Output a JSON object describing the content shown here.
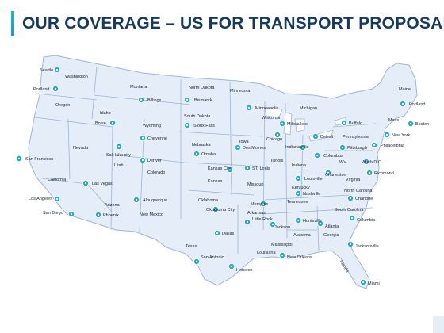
{
  "title": "OUR COVERAGE – US FOR TRANSPORT PROPOSAL",
  "colors": {
    "title": "#17395f",
    "land": "#e4edf8",
    "border": "#9fb6d4",
    "marker": "#1fa9c4",
    "label": "#1c2433"
  },
  "marker_icon": "location-pin-icon",
  "states": [
    "Washington",
    "Oregon",
    "Montana",
    "Idaho",
    "North Dakota",
    "Minnesota",
    "South Dakota",
    "Wyoming",
    "Nevada",
    "Utah",
    "California",
    "Colorado",
    "Nebraska",
    "Iowa",
    "Wisconsin",
    "Michigan",
    "Illinois",
    "Indiana",
    "Kansas",
    "Missouri",
    "Kentucky",
    "Arizona",
    "New Mexico",
    "Oklahoma",
    "Arkansas",
    "Tennessee",
    "Texas",
    "Louisiana",
    "Mississippi",
    "Alabama",
    "Georgia",
    "Florida",
    "Virginia",
    "WV",
    "North Carolina",
    "South Carolina",
    "Pennsylvania",
    "Maine",
    "Mass"
  ],
  "cities": [
    "Seattle",
    "Portland",
    "Billings",
    "Bismarck",
    "Minneapolis",
    "Boise",
    "Cheyenne",
    "Sioux Falls",
    "Milwaukee",
    "Buffalo",
    "Portland",
    "Boston",
    "New York",
    "Philadelphia",
    "Pittsburgh",
    "Chicago",
    "Detroit",
    "Des Moines",
    "Omaha",
    "Salt lake city",
    "Denver",
    "San Francisco",
    "Indianapolis",
    "Columbus",
    "Kansas City",
    "ST. Louis",
    "Wash D.C",
    "Richmond",
    "Charleston",
    "Louisville",
    "Las Vegas",
    "Albuquerque",
    "Los Angeles",
    "San Diego",
    "Phoenix",
    "Oklahoma City",
    "Nashville",
    "Charlotte",
    "Memphis",
    "Little Rock",
    "Huntsville",
    "Columbia",
    "Dallas",
    "Atlanta",
    "Jackson",
    "Jacksonville",
    "San Antonio",
    "New Orleans",
    "Houston",
    "Miami"
  ]
}
